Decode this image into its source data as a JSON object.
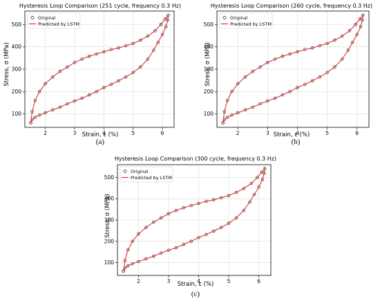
{
  "panels": [
    {
      "caption": "(a)",
      "chart_data": {
        "type": "line",
        "title": "Hysteresis Loop Comparison (251 cycle, frequency 0.3 Hz)",
        "xlabel": "Strain, ε (%)",
        "ylabel": "Stress, σ (MPa)",
        "xlim": [
          1.3,
          6.4
        ],
        "ylim": [
          40,
          560
        ],
        "xticks": [
          2,
          3,
          4,
          5,
          6
        ],
        "yticks": [
          100,
          200,
          300,
          400,
          500
        ],
        "grid": true,
        "legend_position": "top-left",
        "legend": [
          "Original",
          "Predicted by LSTM"
        ],
        "series": [
          {
            "name": "Original",
            "style": "open-circle-markers",
            "color": "#333333",
            "x": [
              1.5,
              1.55,
              1.65,
              1.8,
              2.0,
              2.25,
              2.5,
              2.75,
              3.0,
              3.25,
              3.5,
              3.75,
              4.0,
              4.25,
              4.5,
              4.75,
              5.0,
              5.25,
              5.5,
              5.75,
              5.95,
              6.1,
              6.2,
              6.18,
              6.12,
              6.0,
              5.85,
              5.7,
              5.5,
              5.25,
              5.0,
              4.75,
              4.5,
              4.25,
              4.0,
              3.75,
              3.5,
              3.25,
              3.0,
              2.75,
              2.5,
              2.25,
              2.0,
              1.8,
              1.65,
              1.55,
              1.5
            ],
            "y": [
              60,
              110,
              160,
              200,
              235,
              265,
              290,
              310,
              330,
              345,
              358,
              368,
              378,
              388,
              395,
              405,
              415,
              430,
              448,
              472,
              500,
              525,
              542,
              520,
              490,
              455,
              420,
              385,
              345,
              310,
              285,
              265,
              248,
              232,
              218,
              200,
              185,
              170,
              158,
              145,
              130,
              118,
              105,
              95,
              85,
              75,
              60
            ]
          },
          {
            "name": "Predicted by LSTM",
            "style": "line",
            "color": "#e8302a",
            "x": [
              1.5,
              1.55,
              1.65,
              1.8,
              2.0,
              2.25,
              2.5,
              2.75,
              3.0,
              3.25,
              3.5,
              3.75,
              4.0,
              4.25,
              4.5,
              4.75,
              5.0,
              5.25,
              5.5,
              5.75,
              5.95,
              6.1,
              6.2,
              6.18,
              6.12,
              6.0,
              5.85,
              5.7,
              5.5,
              5.25,
              5.0,
              4.75,
              4.5,
              4.25,
              4.0,
              3.75,
              3.5,
              3.25,
              3.0,
              2.75,
              2.5,
              2.25,
              2.0,
              1.8,
              1.65,
              1.55,
              1.5
            ],
            "y": [
              60,
              110,
              160,
              200,
              235,
              265,
              290,
              310,
              330,
              345,
              358,
              368,
              378,
              388,
              395,
              405,
              415,
              430,
              448,
              472,
              500,
              525,
              542,
              520,
              490,
              455,
              420,
              385,
              345,
              310,
              285,
              265,
              248,
              232,
              218,
              200,
              185,
              170,
              158,
              145,
              130,
              118,
              105,
              95,
              85,
              75,
              60
            ]
          }
        ]
      }
    },
    {
      "caption": "(b)",
      "chart_data": {
        "type": "line",
        "title": "Hysteresis Loop Comparison (260 cycle, frequency 0.3 Hz)",
        "xlabel": "Strain, ε (%)",
        "ylabel": "Stress, σ (MPa)",
        "xlim": [
          1.3,
          6.4
        ],
        "ylim": [
          40,
          560
        ],
        "xticks": [
          2,
          3,
          4,
          5,
          6
        ],
        "yticks": [
          100,
          200,
          300,
          400,
          500
        ],
        "grid": true,
        "legend_position": "top-left",
        "legend": [
          "Original",
          "Predicted by LSTM"
        ],
        "series": [
          {
            "name": "Original",
            "style": "open-circle-markers",
            "color": "#333333",
            "x": [
              1.5,
              1.55,
              1.65,
              1.8,
              2.0,
              2.25,
              2.5,
              2.75,
              3.0,
              3.25,
              3.5,
              3.75,
              4.0,
              4.25,
              4.5,
              4.75,
              5.0,
              5.25,
              5.5,
              5.75,
              5.95,
              6.1,
              6.2,
              6.18,
              6.12,
              6.0,
              5.85,
              5.7,
              5.5,
              5.25,
              5.0,
              4.75,
              4.5,
              4.25,
              4.0,
              3.75,
              3.5,
              3.25,
              3.0,
              2.75,
              2.5,
              2.25,
              2.0,
              1.8,
              1.65,
              1.55,
              1.5
            ],
            "y": [
              60,
              110,
              160,
              200,
              235,
              265,
              290,
              310,
              330,
              345,
              358,
              368,
              378,
              388,
              395,
              405,
              415,
              430,
              448,
              472,
              500,
              525,
              542,
              520,
              490,
              455,
              420,
              385,
              345,
              310,
              285,
              265,
              248,
              232,
              218,
              200,
              185,
              170,
              158,
              145,
              130,
              118,
              105,
              95,
              85,
              75,
              60
            ]
          },
          {
            "name": "Predicted by LSTM",
            "style": "line",
            "color": "#e8302a",
            "x": [
              1.5,
              1.55,
              1.65,
              1.8,
              2.0,
              2.25,
              2.5,
              2.75,
              3.0,
              3.25,
              3.5,
              3.75,
              4.0,
              4.25,
              4.5,
              4.75,
              5.0,
              5.25,
              5.5,
              5.75,
              5.95,
              6.1,
              6.2,
              6.18,
              6.12,
              6.0,
              5.85,
              5.7,
              5.5,
              5.25,
              5.0,
              4.75,
              4.5,
              4.25,
              4.0,
              3.75,
              3.5,
              3.25,
              3.0,
              2.75,
              2.5,
              2.25,
              2.0,
              1.8,
              1.65,
              1.55,
              1.5
            ],
            "y": [
              60,
              110,
              160,
              200,
              235,
              265,
              290,
              310,
              330,
              345,
              358,
              368,
              378,
              388,
              395,
              405,
              415,
              430,
              448,
              472,
              500,
              525,
              542,
              520,
              490,
              455,
              420,
              385,
              345,
              310,
              285,
              265,
              248,
              232,
              218,
              200,
              185,
              170,
              158,
              145,
              130,
              118,
              105,
              95,
              85,
              75,
              60
            ]
          }
        ]
      }
    },
    {
      "caption": "(c)",
      "chart_data": {
        "type": "line",
        "title": "Hysteresis Loop Comparison (300 cycle, frequency 0.3 Hz)",
        "xlabel": "Strain, ε (%)",
        "ylabel": "Stress, σ (MPa)",
        "xlim": [
          1.3,
          6.4
        ],
        "ylim": [
          40,
          560
        ],
        "xticks": [
          2,
          3,
          4,
          5,
          6
        ],
        "yticks": [
          100,
          200,
          300,
          400,
          500
        ],
        "grid": true,
        "legend_position": "top-left",
        "legend": [
          "Original",
          "Predicted by LSTM"
        ],
        "series": [
          {
            "name": "Original",
            "style": "open-circle-markers",
            "color": "#333333",
            "x": [
              1.5,
              1.55,
              1.65,
              1.8,
              2.0,
              2.25,
              2.5,
              2.75,
              3.0,
              3.25,
              3.5,
              3.75,
              4.0,
              4.25,
              4.5,
              4.75,
              5.0,
              5.25,
              5.5,
              5.75,
              5.95,
              6.1,
              6.2,
              6.18,
              6.12,
              6.0,
              5.85,
              5.7,
              5.5,
              5.25,
              5.0,
              4.75,
              4.5,
              4.25,
              4.0,
              3.75,
              3.5,
              3.25,
              3.0,
              2.75,
              2.5,
              2.25,
              2.0,
              1.8,
              1.65,
              1.55,
              1.5
            ],
            "y": [
              60,
              110,
              160,
              200,
              235,
              265,
              290,
              310,
              330,
              345,
              358,
              368,
              378,
              388,
              395,
              405,
              415,
              430,
              448,
              472,
              500,
              525,
              542,
              520,
              490,
              455,
              420,
              385,
              345,
              310,
              285,
              265,
              248,
              232,
              218,
              200,
              185,
              170,
              158,
              145,
              130,
              118,
              105,
              95,
              85,
              75,
              60
            ]
          },
          {
            "name": "Predicted by LSTM",
            "style": "line",
            "color": "#e8302a",
            "x": [
              1.5,
              1.55,
              1.65,
              1.8,
              2.0,
              2.25,
              2.5,
              2.75,
              3.0,
              3.25,
              3.5,
              3.75,
              4.0,
              4.25,
              4.5,
              4.75,
              5.0,
              5.25,
              5.5,
              5.75,
              5.95,
              6.1,
              6.2,
              6.18,
              6.12,
              6.0,
              5.85,
              5.7,
              5.5,
              5.25,
              5.0,
              4.75,
              4.5,
              4.25,
              4.0,
              3.75,
              3.5,
              3.25,
              3.0,
              2.75,
              2.5,
              2.25,
              2.0,
              1.8,
              1.65,
              1.55,
              1.5
            ],
            "y": [
              60,
              110,
              160,
              200,
              235,
              265,
              290,
              310,
              330,
              345,
              358,
              368,
              378,
              388,
              395,
              405,
              415,
              430,
              448,
              472,
              500,
              525,
              542,
              520,
              490,
              455,
              420,
              385,
              345,
              310,
              285,
              265,
              248,
              232,
              218,
              200,
              185,
              170,
              158,
              145,
              130,
              118,
              105,
              95,
              85,
              75,
              60
            ]
          }
        ]
      }
    }
  ]
}
